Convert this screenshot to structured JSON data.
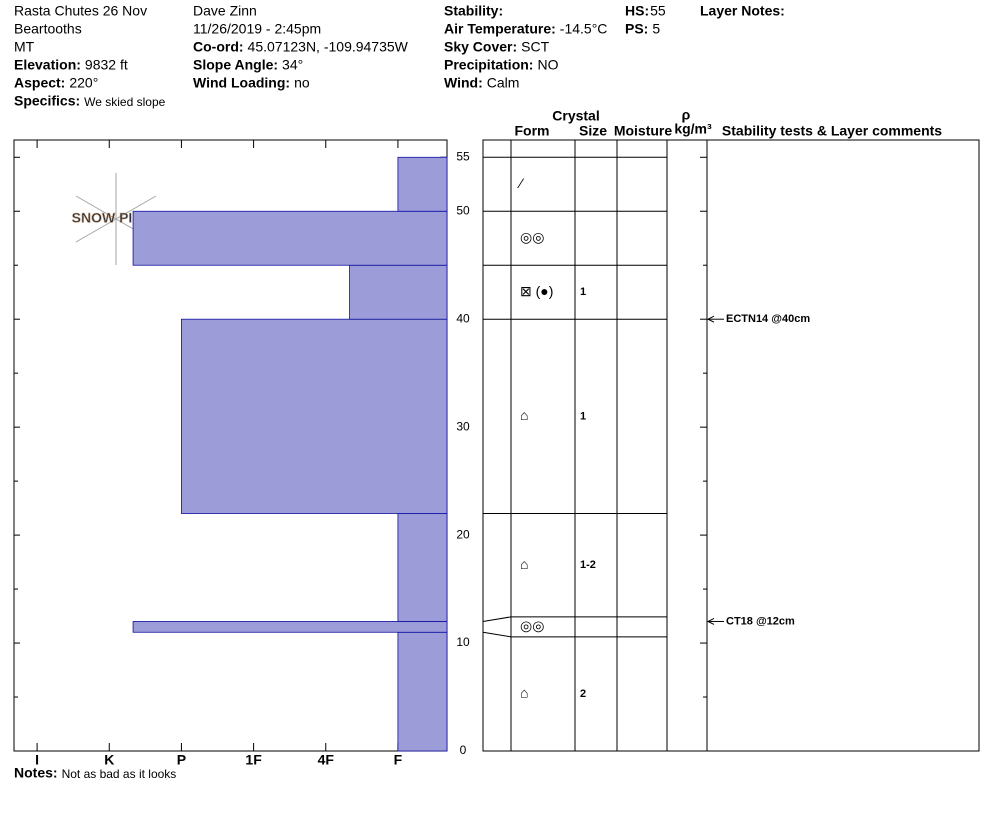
{
  "header": {
    "location": "Rasta Chutes 26 Nov",
    "range": "Beartooths",
    "state": "MT",
    "elevation": {
      "label": "Elevation:",
      "value": "9832 ft"
    },
    "aspect": {
      "label": "Aspect:",
      "value": "220°"
    },
    "specifics": {
      "label": "Specifics:",
      "value": "We skied slope"
    },
    "observer": "Dave Zinn",
    "datetime": "11/26/2019 - 2:45pm",
    "coord": {
      "label": "Co-ord:",
      "value": "45.07123N, -109.94735W"
    },
    "slope": {
      "label": "Slope Angle:",
      "value": "34°"
    },
    "wind_loading": {
      "label": "Wind Loading:",
      "value": "no"
    },
    "stability": {
      "label": "Stability:"
    },
    "air_temp": {
      "label": "Air Temperature:",
      "value": "-14.5°C"
    },
    "sky": {
      "label": "Sky Cover:",
      "value": "SCT"
    },
    "precip": {
      "label": "Precipitation:",
      "value": "NO"
    },
    "wind": {
      "label": "Wind:",
      "value": "Calm"
    },
    "hs": {
      "label": "HS:",
      "value": "55"
    },
    "ps": {
      "label": "PS:",
      "value": "5"
    },
    "layer_notes": {
      "label": "Layer Notes:"
    },
    "notes": {
      "label": "Notes:",
      "value": "Not as bad as it looks"
    }
  },
  "logo": "SNOW PILOT",
  "table_headers": {
    "crystal": "Crystal",
    "form": "Form",
    "size": "Size",
    "moisture": "Moisture",
    "rho": "ρ",
    "density_unit": "kg/m³",
    "stability": "Stability tests & Layer comments"
  },
  "chart_data": {
    "type": "snow-profile",
    "color": "#9c9cd8",
    "edge_color": "#1010a0",
    "ylim": [
      0,
      56.6
    ],
    "yticks": [
      0,
      10,
      20,
      30,
      40,
      50,
      55
    ],
    "yminor": [
      5,
      15,
      25,
      35,
      45
    ],
    "xlim": [
      0.68,
      6.68
    ],
    "xticks": [
      {
        "value": 1,
        "label": "I"
      },
      {
        "value": 2,
        "label": "K"
      },
      {
        "value": 3,
        "label": "P"
      },
      {
        "value": 4,
        "label": "1F"
      },
      {
        "value": 5,
        "label": "4F"
      },
      {
        "value": 6,
        "label": "F"
      }
    ],
    "bottoms": [
      0,
      11,
      12,
      22,
      40,
      45,
      50
    ],
    "tops": [
      11,
      12,
      22,
      40,
      45,
      50,
      55
    ],
    "hardness": [
      6,
      2.33,
      6,
      3,
      5.33,
      2.33,
      6
    ],
    "forms": [
      "⌂",
      "◎◎",
      "⌂",
      "⌂",
      "⊠ (●)",
      "◎◎",
      "⁄"
    ],
    "sizes": [
      2,
      null,
      "1-2",
      1,
      1,
      null,
      null
    ],
    "tests": [
      {
        "label": "ECTN14 @40cm",
        "height": 40
      },
      {
        "label": "CT18 @12cm",
        "height": 12
      }
    ]
  }
}
